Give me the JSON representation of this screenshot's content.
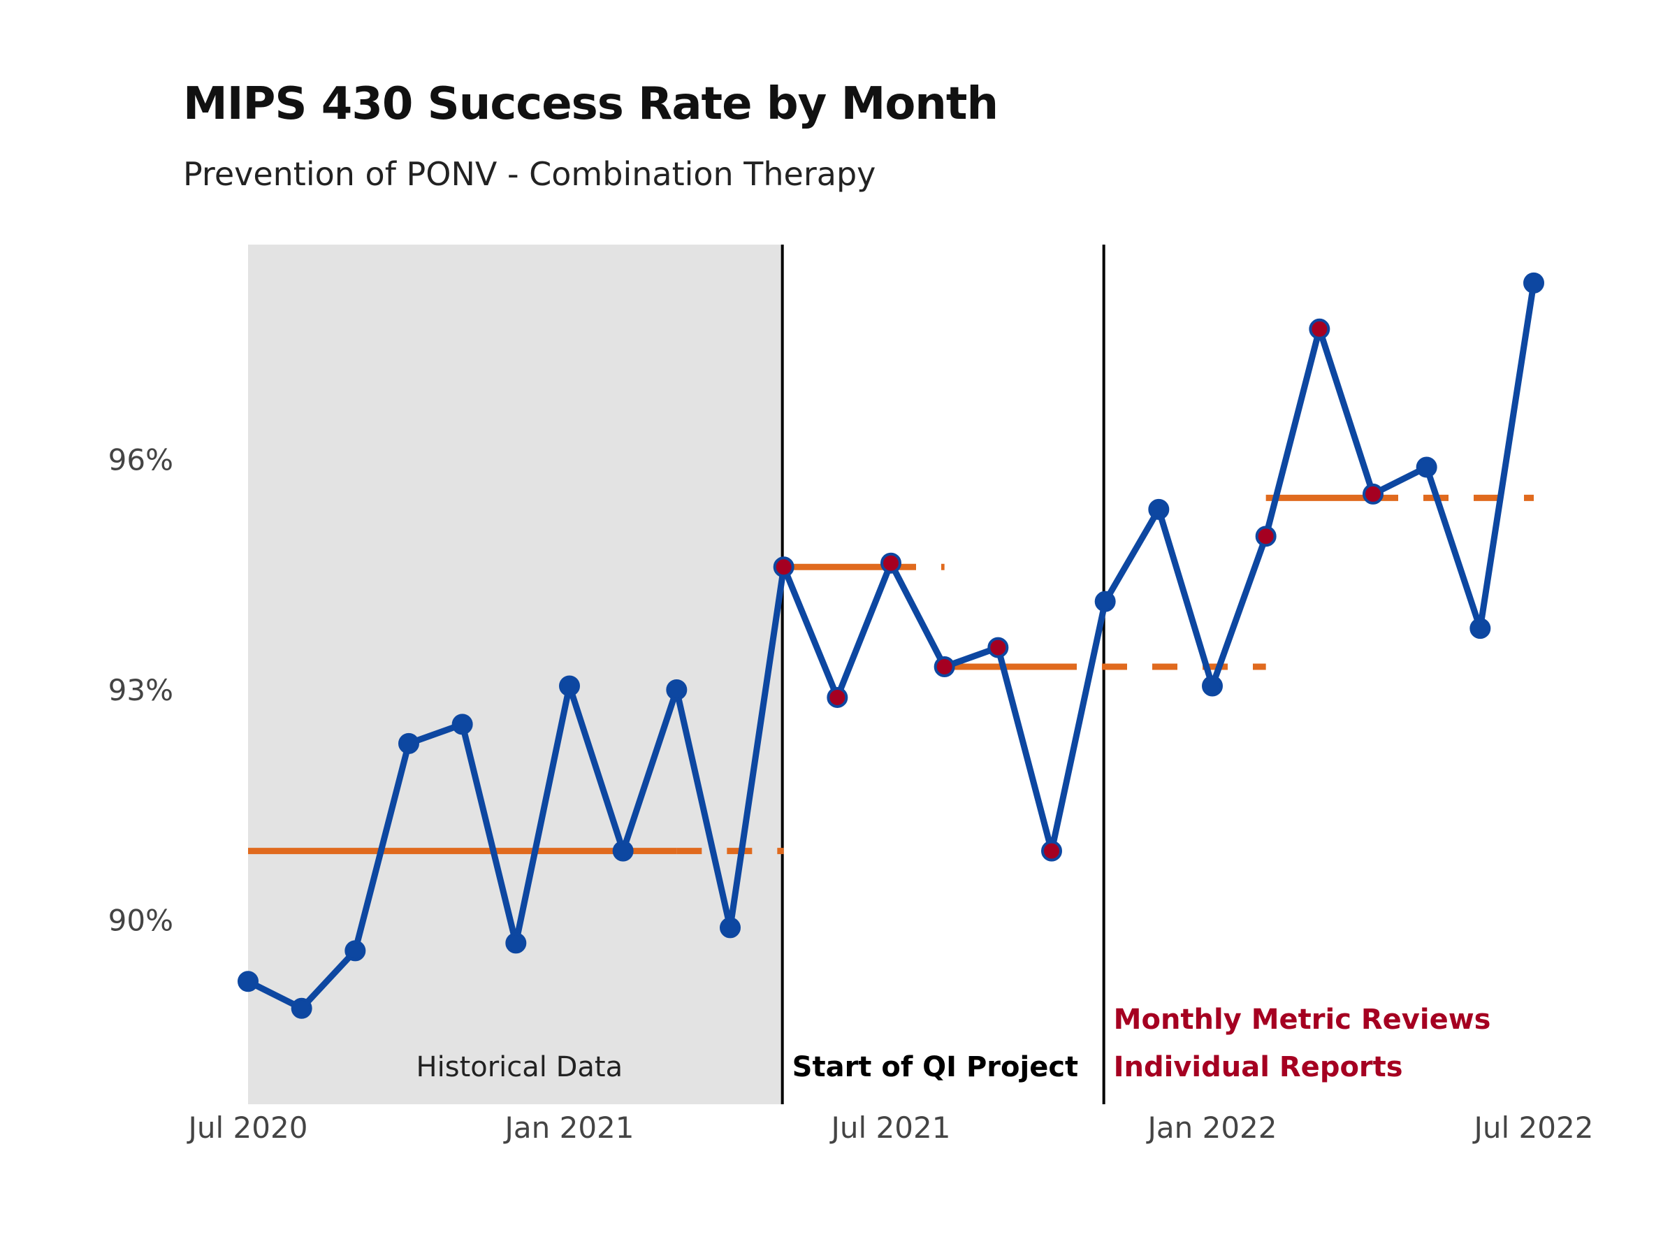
{
  "colors": {
    "line": "#0D47A1",
    "point": "#0D47A1",
    "signal_point": "#A50021",
    "centerline": "#E06A1E",
    "shade": "#E3E3E3",
    "phase_line": "#000000",
    "annotation_red": "#A50021",
    "text": "#222222"
  },
  "chart_data": {
    "type": "line",
    "title": "MIPS 430 Success Rate by Month",
    "subtitle": "Prevention of PONV - Combination Therapy",
    "xlabel": "",
    "ylabel": "",
    "x_tick_labels": [
      {
        "date": "2020-07",
        "label": "Jul 2020"
      },
      {
        "date": "2021-01",
        "label": "Jan 2021"
      },
      {
        "date": "2021-07",
        "label": "Jul 2021"
      },
      {
        "date": "2022-01",
        "label": "Jan 2022"
      },
      {
        "date": "2022-07",
        "label": "Jul 2022"
      }
    ],
    "y_ticks": [
      {
        "value": 90,
        "label": "90%"
      },
      {
        "value": 93,
        "label": "93%"
      },
      {
        "value": 96,
        "label": "96%"
      }
    ],
    "xlim": [
      "2020-07",
      "2022-07"
    ],
    "ylim": [
      87.6,
      98.8
    ],
    "grid": false,
    "series": [
      {
        "values": [
          {
            "date": "2020-07",
            "value": 89.2,
            "signal": false
          },
          {
            "date": "2020-08",
            "value": 88.85,
            "signal": false
          },
          {
            "date": "2020-09",
            "value": 89.6,
            "signal": false
          },
          {
            "date": "2020-10",
            "value": 92.3,
            "signal": false
          },
          {
            "date": "2020-11",
            "value": 92.55,
            "signal": false
          },
          {
            "date": "2020-12",
            "value": 89.7,
            "signal": false
          },
          {
            "date": "2021-01",
            "value": 93.05,
            "signal": false
          },
          {
            "date": "2021-02",
            "value": 90.9,
            "signal": false
          },
          {
            "date": "2021-03",
            "value": 93.0,
            "signal": false
          },
          {
            "date": "2021-04",
            "value": 89.9,
            "signal": false
          },
          {
            "date": "2021-05",
            "value": 94.6,
            "signal": true
          },
          {
            "date": "2021-06",
            "value": 92.9,
            "signal": true
          },
          {
            "date": "2021-07",
            "value": 94.65,
            "signal": true
          },
          {
            "date": "2021-08",
            "value": 93.3,
            "signal": true
          },
          {
            "date": "2021-09",
            "value": 93.55,
            "signal": true
          },
          {
            "date": "2021-10",
            "value": 90.9,
            "signal": true
          },
          {
            "date": "2021-11",
            "value": 94.15,
            "signal": false
          },
          {
            "date": "2021-12",
            "value": 95.35,
            "signal": false
          },
          {
            "date": "2022-01",
            "value": 93.05,
            "signal": false
          },
          {
            "date": "2022-02",
            "value": 95.0,
            "signal": true
          },
          {
            "date": "2022-03",
            "value": 97.7,
            "signal": true
          },
          {
            "date": "2022-04",
            "value": 95.55,
            "signal": true
          },
          {
            "date": "2022-05",
            "value": 95.9,
            "signal": false
          },
          {
            "date": "2022-06",
            "value": 93.8,
            "signal": false
          },
          {
            "date": "2022-07",
            "value": 98.3,
            "signal": false
          }
        ]
      }
    ],
    "centerlines": [
      {
        "value": 90.9,
        "solid_from": "2020-07",
        "solid_to": "2021-03",
        "dashed_to": "2021-05"
      },
      {
        "value": 94.6,
        "solid_from": "2021-05",
        "solid_to": "2021-07",
        "dashed_to": "2021-08"
      },
      {
        "value": 93.3,
        "solid_from": "2021-08",
        "solid_to": "2021-10",
        "dashed_to": "2022-02"
      },
      {
        "value": 95.5,
        "solid_from": "2022-02",
        "solid_to": "2022-04",
        "dashed_to": "2022-07"
      }
    ],
    "shaded_region": {
      "from": "2020-07",
      "to": "2021-05",
      "label": "Historical Data"
    },
    "phase_lines": [
      {
        "date": "2021-05",
        "labels": [
          "Start of QI Project"
        ],
        "color": "#000000"
      },
      {
        "date": "2021-11",
        "labels": [
          "Monthly Metric Reviews",
          "Individual Reports"
        ],
        "color": "#A50021"
      }
    ]
  }
}
